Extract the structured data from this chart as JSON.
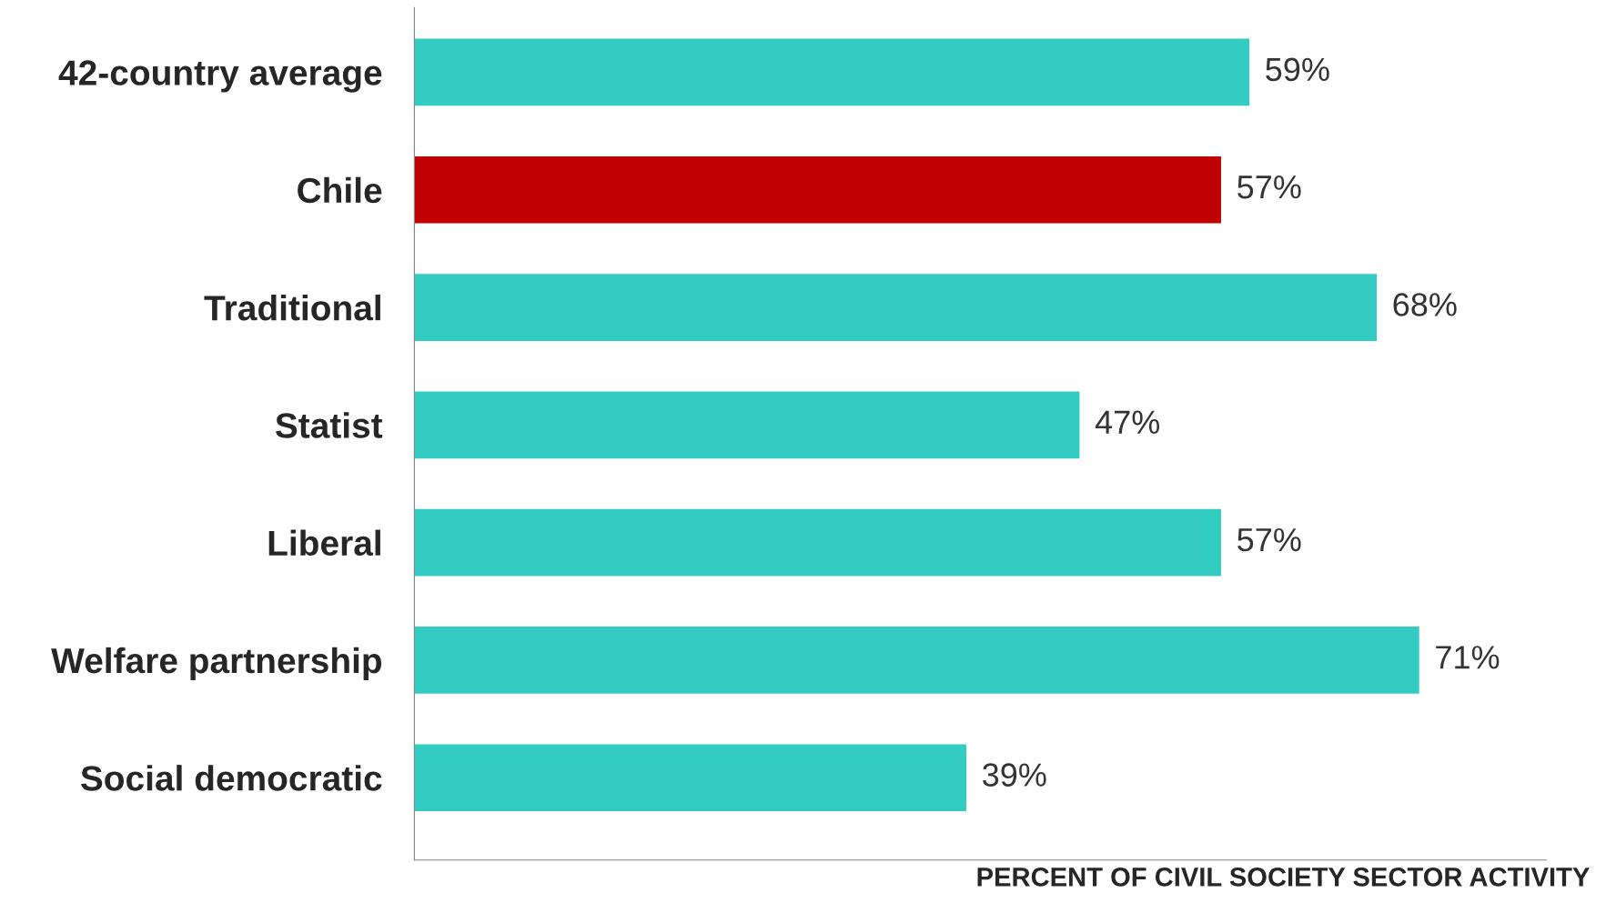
{
  "chart_data": {
    "type": "bar",
    "orientation": "horizontal",
    "xlabel": "PERCENT OF CIVIL SOCIETY SECTOR ACTIVITY",
    "categories": [
      "42-country average",
      "Chile",
      "Traditional",
      "Statist",
      "Liberal",
      "Welfare partnership",
      "Social democratic"
    ],
    "values": [
      59,
      57,
      68,
      47,
      57,
      71,
      39
    ],
    "colors": [
      "#33ccc3",
      "#c00000",
      "#33ccc3",
      "#33ccc3",
      "#33ccc3",
      "#33ccc3",
      "#33ccc3"
    ],
    "value_labels": [
      "59%",
      "57%",
      "68%",
      "47%",
      "57%",
      "71%",
      "39%"
    ],
    "xlim": [
      0,
      80
    ],
    "tick_labels": "y",
    "grid": false
  }
}
